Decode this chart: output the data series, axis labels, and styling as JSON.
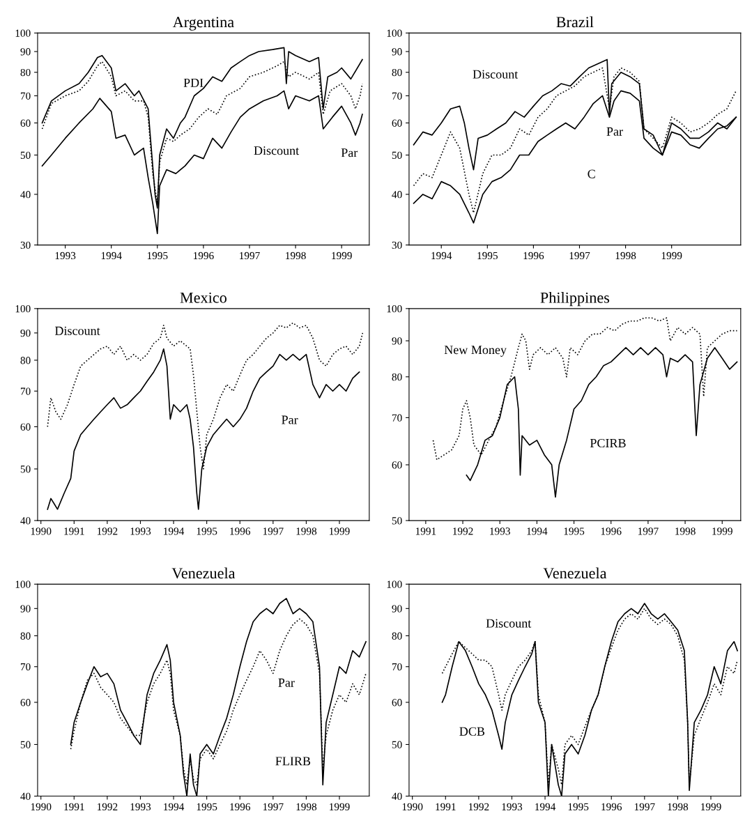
{
  "chart_data": [
    {
      "type": "line",
      "title": "Argentina",
      "log": "y",
      "xlim": [
        1992.4,
        1999.6
      ],
      "ylim": [
        30,
        100
      ],
      "xticks": [
        1993,
        1994,
        1995,
        1996,
        1997,
        1998,
        1999
      ],
      "yticks": [
        30,
        40,
        50,
        60,
        70,
        80,
        90,
        100
      ],
      "annotations": [
        "PDI",
        "Discount",
        "Par"
      ],
      "series": [
        {
          "color": "#000000",
          "line_style": "solid",
          "x": [
            1992.5,
            1992.7,
            1993.0,
            1993.3,
            1993.5,
            1993.7,
            1993.8,
            1994.0,
            1994.1,
            1994.3,
            1994.5,
            1994.6,
            1994.8,
            1994.85,
            1994.95,
            1995.0,
            1995.05,
            1995.2,
            1995.35,
            1995.5,
            1995.6,
            1995.8,
            1996.0,
            1996.2,
            1996.4,
            1996.6,
            1996.8,
            1997.0,
            1997.2,
            1997.5,
            1997.75,
            1997.8,
            1997.85,
            1998.0,
            1998.3,
            1998.5,
            1998.6,
            1998.7,
            1998.9,
            1999.0,
            1999.2,
            1999.45
          ],
          "values": [
            60,
            68,
            72,
            75,
            80,
            87,
            88,
            82,
            72,
            75,
            70,
            72,
            65,
            55,
            40,
            37,
            50,
            58,
            55,
            60,
            62,
            70,
            73,
            78,
            76,
            82,
            85,
            88,
            90,
            91,
            92,
            75,
            90,
            88,
            85,
            87,
            65,
            78,
            80,
            82,
            77,
            86
          ]
        },
        {
          "color": "#000000",
          "line_style": "dotted",
          "x": [
            1992.5,
            1992.7,
            1993.0,
            1993.3,
            1993.5,
            1993.7,
            1993.8,
            1994.0,
            1994.1,
            1994.3,
            1994.5,
            1994.7,
            1994.8,
            1994.9,
            1995.0,
            1995.05,
            1995.2,
            1995.35,
            1995.5,
            1995.7,
            1995.9,
            1996.1,
            1996.3,
            1996.5,
            1996.8,
            1997.0,
            1997.3,
            1997.6,
            1997.75,
            1997.85,
            1998.0,
            1998.3,
            1998.5,
            1998.6,
            1998.75,
            1999.0,
            1999.2,
            1999.3,
            1999.4,
            1999.45
          ],
          "values": [
            58,
            67,
            70,
            72,
            76,
            83,
            85,
            78,
            70,
            72,
            68,
            68,
            62,
            45,
            38,
            48,
            55,
            54,
            56,
            58,
            62,
            65,
            63,
            70,
            73,
            78,
            80,
            83,
            85,
            78,
            80,
            77,
            80,
            63,
            72,
            75,
            70,
            65,
            70,
            75
          ]
        },
        {
          "color": "#000000",
          "line_style": "solid",
          "x": [
            1992.5,
            1992.7,
            1993.0,
            1993.3,
            1993.6,
            1993.75,
            1994.0,
            1994.1,
            1994.3,
            1994.5,
            1994.7,
            1994.8,
            1994.9,
            1995.0,
            1995.05,
            1995.2,
            1995.4,
            1995.6,
            1995.8,
            1996.0,
            1996.2,
            1996.4,
            1996.6,
            1996.8,
            1997.0,
            1997.3,
            1997.6,
            1997.75,
            1997.85,
            1998.0,
            1998.3,
            1998.5,
            1998.6,
            1998.8,
            1999.0,
            1999.2,
            1999.3,
            1999.4,
            1999.45
          ],
          "values": [
            47,
            50,
            55,
            60,
            65,
            69,
            64,
            55,
            56,
            50,
            52,
            44,
            38,
            32,
            42,
            46,
            45,
            47,
            50,
            49,
            55,
            52,
            57,
            62,
            65,
            68,
            70,
            72,
            65,
            70,
            68,
            70,
            58,
            62,
            66,
            60,
            56,
            60,
            63
          ]
        }
      ]
    },
    {
      "type": "line",
      "title": "Brazil",
      "log": "y",
      "xlim": [
        1993.3,
        2000.5
      ],
      "ylim": [
        30,
        100
      ],
      "xticks": [
        1994,
        1995,
        1996,
        1997,
        1998,
        1999
      ],
      "yticks": [
        30,
        40,
        50,
        60,
        70,
        80,
        90,
        100
      ],
      "annotations": [
        "Discount",
        "C",
        "Par"
      ],
      "series": [
        {
          "color": "#000000",
          "line_style": "solid",
          "x": [
            1993.4,
            1993.6,
            1993.8,
            1994.0,
            1994.2,
            1994.4,
            1994.5,
            1994.6,
            1994.7,
            1994.8,
            1995.0,
            1995.2,
            1995.4,
            1995.6,
            1995.8,
            1996.0,
            1996.2,
            1996.4,
            1996.6,
            1996.8,
            1997.0,
            1997.2,
            1997.4,
            1997.6,
            1997.65,
            1997.7,
            1997.9,
            1998.1,
            1998.3,
            1998.4,
            1998.6,
            1998.8,
            1999.0,
            1999.2,
            1999.4,
            1999.6,
            1999.8,
            2000.0,
            2000.2,
            2000.4
          ],
          "values": [
            53,
            57,
            56,
            60,
            65,
            66,
            60,
            52,
            46,
            55,
            56,
            58,
            60,
            64,
            62,
            66,
            70,
            72,
            75,
            74,
            78,
            82,
            84,
            86,
            63,
            75,
            80,
            78,
            75,
            58,
            56,
            50,
            60,
            58,
            55,
            55,
            57,
            60,
            58,
            62
          ]
        },
        {
          "color": "#000000",
          "line_style": "dotted",
          "x": [
            1993.4,
            1993.6,
            1993.8,
            1994.0,
            1994.2,
            1994.4,
            1994.6,
            1994.7,
            1994.9,
            1995.1,
            1995.3,
            1995.5,
            1995.7,
            1995.9,
            1996.1,
            1996.3,
            1996.5,
            1996.7,
            1996.9,
            1997.1,
            1997.3,
            1997.5,
            1997.65,
            1997.75,
            1997.9,
            1998.1,
            1998.3,
            1998.4,
            1998.6,
            1998.8,
            1999.0,
            1999.2,
            1999.4,
            1999.6,
            1999.8,
            2000.0,
            2000.2,
            2000.4
          ],
          "values": [
            42,
            45,
            44,
            50,
            57,
            52,
            40,
            36,
            45,
            50,
            50,
            52,
            58,
            56,
            62,
            65,
            70,
            72,
            74,
            78,
            80,
            82,
            65,
            78,
            82,
            80,
            76,
            58,
            55,
            52,
            62,
            60,
            57,
            58,
            60,
            63,
            65,
            72
          ]
        },
        {
          "color": "#000000",
          "line_style": "solid",
          "x": [
            1993.4,
            1993.6,
            1993.8,
            1994.0,
            1994.2,
            1994.4,
            1994.6,
            1994.7,
            1994.9,
            1995.1,
            1995.3,
            1995.5,
            1995.7,
            1995.9,
            1996.1,
            1996.3,
            1996.5,
            1996.7,
            1996.9,
            1997.1,
            1997.3,
            1997.5,
            1997.65,
            1997.75,
            1997.9,
            1998.1,
            1998.3,
            1998.4,
            1998.6,
            1998.8,
            1999.0,
            1999.2,
            1999.4,
            1999.6,
            1999.8,
            2000.0,
            2000.2,
            2000.4
          ],
          "values": [
            38,
            40,
            39,
            43,
            42,
            40,
            36,
            34,
            40,
            43,
            44,
            46,
            50,
            50,
            54,
            56,
            58,
            60,
            58,
            62,
            67,
            70,
            62,
            68,
            72,
            71,
            68,
            55,
            52,
            50,
            57,
            56,
            53,
            52,
            55,
            58,
            59,
            62
          ]
        }
      ]
    },
    {
      "type": "line",
      "title": "Mexico",
      "log": "y",
      "xlim": [
        1989.9,
        1999.9
      ],
      "ylim": [
        40,
        100
      ],
      "xticks": [
        1990,
        1991,
        1992,
        1993,
        1994,
        1995,
        1996,
        1997,
        1998,
        1999
      ],
      "yticks": [
        40,
        50,
        60,
        70,
        80,
        90,
        100
      ],
      "annotations": [
        "Discount",
        "Par"
      ],
      "series": [
        {
          "color": "#000000",
          "line_style": "dotted",
          "x": [
            1990.2,
            1990.3,
            1990.45,
            1990.6,
            1990.8,
            1991.0,
            1991.2,
            1991.4,
            1991.6,
            1991.8,
            1992.0,
            1992.2,
            1992.4,
            1992.6,
            1992.8,
            1993.0,
            1993.2,
            1993.4,
            1993.6,
            1993.7,
            1993.8,
            1994.0,
            1994.2,
            1994.4,
            1994.5,
            1994.6,
            1994.8,
            1994.9,
            1995.0,
            1995.2,
            1995.4,
            1995.6,
            1995.8,
            1996.0,
            1996.2,
            1996.4,
            1996.6,
            1996.8,
            1997.0,
            1997.2,
            1997.4,
            1997.6,
            1997.8,
            1998.0,
            1998.2,
            1998.4,
            1998.6,
            1998.8,
            1999.0,
            1999.2,
            1999.4,
            1999.6,
            1999.7
          ],
          "values": [
            60,
            68,
            64,
            62,
            66,
            72,
            78,
            80,
            82,
            84,
            85,
            82,
            85,
            80,
            82,
            80,
            82,
            86,
            88,
            93,
            88,
            85,
            87,
            85,
            84,
            75,
            55,
            50,
            58,
            62,
            68,
            72,
            70,
            75,
            80,
            82,
            85,
            88,
            90,
            93,
            92,
            94,
            92,
            93,
            88,
            80,
            78,
            82,
            84,
            85,
            82,
            85,
            90
          ]
        },
        {
          "color": "#000000",
          "line_style": "solid",
          "x": [
            1990.2,
            1990.3,
            1990.4,
            1990.5,
            1990.7,
            1990.9,
            1991.0,
            1991.2,
            1991.4,
            1991.6,
            1991.8,
            1992.0,
            1992.2,
            1992.4,
            1992.6,
            1992.8,
            1993.0,
            1993.2,
            1993.4,
            1993.6,
            1993.7,
            1993.8,
            1993.9,
            1994.0,
            1994.2,
            1994.4,
            1994.5,
            1994.6,
            1994.7,
            1994.75,
            1994.85,
            1995.0,
            1995.2,
            1995.4,
            1995.6,
            1995.8,
            1996.0,
            1996.2,
            1996.4,
            1996.6,
            1996.8,
            1997.0,
            1997.2,
            1997.4,
            1997.6,
            1997.8,
            1998.0,
            1998.2,
            1998.4,
            1998.6,
            1998.8,
            1999.0,
            1999.2,
            1999.4,
            1999.6
          ],
          "values": [
            42,
            44,
            43,
            42,
            45,
            48,
            54,
            58,
            60,
            62,
            64,
            66,
            68,
            65,
            66,
            68,
            70,
            73,
            76,
            80,
            84,
            78,
            62,
            66,
            64,
            66,
            62,
            55,
            45,
            42,
            50,
            55,
            58,
            60,
            62,
            60,
            62,
            65,
            70,
            74,
            76,
            78,
            82,
            80,
            82,
            80,
            82,
            72,
            68,
            72,
            70,
            72,
            70,
            74,
            76
          ]
        }
      ]
    },
    {
      "type": "line",
      "title": "Philippines",
      "log": "y",
      "xlim": [
        1990.55,
        1999.5
      ],
      "ylim": [
        50,
        100
      ],
      "xticks": [
        1991,
        1992,
        1993,
        1994,
        1995,
        1996,
        1997,
        1998,
        1999
      ],
      "yticks": [
        50,
        60,
        70,
        80,
        90,
        100
      ],
      "annotations": [
        "New Money",
        "PCIRB"
      ],
      "series": [
        {
          "color": "#000000",
          "line_style": "dotted",
          "x": [
            1991.2,
            1991.3,
            1991.5,
            1991.7,
            1991.9,
            1992.0,
            1992.1,
            1992.2,
            1992.3,
            1992.5,
            1992.7,
            1992.9,
            1993.1,
            1993.3,
            1993.5,
            1993.6,
            1993.7,
            1993.8,
            1993.9,
            1994.1,
            1994.3,
            1994.5,
            1994.7,
            1994.8,
            1994.9,
            1995.1,
            1995.3,
            1995.5,
            1995.7,
            1995.9,
            1996.1,
            1996.3,
            1996.5,
            1996.7,
            1996.9,
            1997.1,
            1997.3,
            1997.5,
            1997.6,
            1997.8,
            1998.0,
            1998.2,
            1998.4,
            1998.5,
            1998.6,
            1998.8,
            1999.0,
            1999.2,
            1999.4
          ],
          "values": [
            65,
            61,
            62,
            63,
            66,
            72,
            74,
            70,
            64,
            62,
            65,
            68,
            74,
            80,
            88,
            92,
            90,
            82,
            86,
            88,
            86,
            88,
            85,
            80,
            88,
            86,
            90,
            92,
            92,
            94,
            93,
            95,
            96,
            96,
            97,
            97,
            96,
            97,
            90,
            94,
            92,
            94,
            92,
            75,
            88,
            90,
            92,
            93,
            93
          ]
        },
        {
          "color": "#000000",
          "line_style": "solid",
          "x": [
            1992.1,
            1992.2,
            1992.4,
            1992.6,
            1992.8,
            1993.0,
            1993.2,
            1993.4,
            1993.5,
            1993.55,
            1993.6,
            1993.8,
            1994.0,
            1994.2,
            1994.4,
            1994.5,
            1994.6,
            1994.8,
            1995.0,
            1995.2,
            1995.4,
            1995.6,
            1995.8,
            1996.0,
            1996.2,
            1996.4,
            1996.6,
            1996.8,
            1997.0,
            1997.2,
            1997.4,
            1997.5,
            1997.6,
            1997.8,
            1998.0,
            1998.2,
            1998.3,
            1998.4,
            1998.6,
            1998.8,
            1999.0,
            1999.2,
            1999.4
          ],
          "values": [
            58,
            57,
            60,
            65,
            66,
            70,
            78,
            80,
            72,
            58,
            66,
            64,
            65,
            62,
            60,
            54,
            60,
            65,
            72,
            74,
            78,
            80,
            83,
            84,
            86,
            88,
            86,
            88,
            86,
            88,
            86,
            80,
            85,
            84,
            86,
            84,
            66,
            78,
            85,
            88,
            85,
            82,
            84
          ]
        }
      ]
    },
    {
      "type": "line",
      "title": "Venezuela",
      "log": "y",
      "xlim": [
        1989.9,
        1999.9
      ],
      "ylim": [
        40,
        100
      ],
      "xticks": [
        1990,
        1991,
        1992,
        1993,
        1994,
        1995,
        1996,
        1997,
        1998,
        1999
      ],
      "yticks": [
        40,
        50,
        60,
        70,
        80,
        90,
        100
      ],
      "annotations": [
        "Par",
        "FLIRB"
      ],
      "series": [
        {
          "color": "#000000",
          "line_style": "solid",
          "x": [
            1990.9,
            1991.0,
            1991.2,
            1991.4,
            1991.6,
            1991.8,
            1992.0,
            1992.2,
            1992.4,
            1992.6,
            1992.8,
            1993.0,
            1993.2,
            1993.4,
            1993.6,
            1993.8,
            1993.9,
            1994.0,
            1994.2,
            1994.3,
            1994.4,
            1994.5,
            1994.6,
            1994.7,
            1994.8,
            1995.0,
            1995.2,
            1995.4,
            1995.6,
            1995.8,
            1996.0,
            1996.2,
            1996.4,
            1996.6,
            1996.8,
            1997.0,
            1997.2,
            1997.4,
            1997.6,
            1997.8,
            1998.0,
            1998.2,
            1998.4,
            1998.5,
            1998.6,
            1998.8,
            1999.0,
            1999.2,
            1999.4,
            1999.6,
            1999.8
          ],
          "values": [
            50,
            55,
            60,
            65,
            70,
            67,
            68,
            65,
            58,
            55,
            52,
            50,
            62,
            68,
            72,
            77,
            72,
            60,
            52,
            44,
            40,
            48,
            42,
            40,
            48,
            50,
            48,
            52,
            56,
            62,
            70,
            78,
            85,
            88,
            90,
            88,
            92,
            94,
            88,
            90,
            88,
            85,
            70,
            42,
            55,
            62,
            70,
            68,
            75,
            73,
            78
          ]
        },
        {
          "color": "#000000",
          "line_style": "dotted",
          "x": [
            1990.9,
            1991.0,
            1991.2,
            1991.4,
            1991.6,
            1991.8,
            1992.0,
            1992.2,
            1992.4,
            1992.6,
            1992.8,
            1993.0,
            1993.2,
            1993.4,
            1993.6,
            1993.8,
            1993.9,
            1994.0,
            1994.2,
            1994.3,
            1994.4,
            1994.5,
            1994.6,
            1994.7,
            1994.8,
            1995.0,
            1995.2,
            1995.4,
            1995.6,
            1995.8,
            1996.0,
            1996.2,
            1996.4,
            1996.6,
            1996.8,
            1997.0,
            1997.2,
            1997.4,
            1997.6,
            1997.8,
            1998.0,
            1998.2,
            1998.4,
            1998.5,
            1998.6,
            1998.8,
            1999.0,
            1999.2,
            1999.4,
            1999.6,
            1999.8
          ],
          "values": [
            49,
            53,
            60,
            66,
            68,
            64,
            62,
            60,
            56,
            54,
            52,
            52,
            60,
            65,
            68,
            72,
            68,
            58,
            52,
            45,
            42,
            47,
            43,
            42,
            47,
            49,
            47,
            50,
            53,
            58,
            62,
            66,
            70,
            75,
            72,
            68,
            75,
            80,
            84,
            86,
            84,
            80,
            68,
            45,
            52,
            58,
            62,
            60,
            65,
            62,
            68
          ]
        }
      ]
    },
    {
      "type": "line",
      "title": "Venezuela",
      "log": "y",
      "xlim": [
        1989.9,
        1999.9
      ],
      "ylim": [
        40,
        100
      ],
      "xticks": [
        1990,
        1991,
        1992,
        1993,
        1994,
        1995,
        1996,
        1997,
        1998,
        1999
      ],
      "yticks": [
        40,
        50,
        60,
        70,
        80,
        90,
        100
      ],
      "annotations": [
        "Discount",
        "DCB"
      ],
      "series": [
        {
          "color": "#000000",
          "line_style": "solid",
          "x": [
            1990.9,
            1991.0,
            1991.2,
            1991.4,
            1991.6,
            1991.8,
            1992.0,
            1992.2,
            1992.4,
            1992.6,
            1992.7,
            1992.8,
            1993.0,
            1993.2,
            1993.4,
            1993.6,
            1993.7,
            1993.8,
            1994.0,
            1994.1,
            1994.2,
            1994.4,
            1994.5,
            1994.6,
            1994.8,
            1995.0,
            1995.2,
            1995.4,
            1995.6,
            1995.8,
            1996.0,
            1996.2,
            1996.4,
            1996.6,
            1996.8,
            1997.0,
            1997.2,
            1997.4,
            1997.6,
            1997.8,
            1998.0,
            1998.2,
            1998.3,
            1998.35,
            1998.5,
            1998.7,
            1998.9,
            1999.1,
            1999.3,
            1999.5,
            1999.7,
            1999.8
          ],
          "values": [
            60,
            62,
            70,
            78,
            75,
            70,
            65,
            62,
            58,
            52,
            49,
            55,
            62,
            66,
            70,
            74,
            78,
            60,
            55,
            40,
            50,
            42,
            40,
            48,
            50,
            48,
            52,
            58,
            62,
            70,
            78,
            85,
            88,
            90,
            88,
            92,
            88,
            86,
            88,
            85,
            82,
            75,
            55,
            41,
            55,
            58,
            62,
            70,
            65,
            75,
            78,
            75
          ]
        },
        {
          "color": "#000000",
          "line_style": "dotted",
          "x": [
            1990.9,
            1991.0,
            1991.2,
            1991.4,
            1991.6,
            1991.8,
            1992.0,
            1992.2,
            1992.4,
            1992.6,
            1992.7,
            1992.8,
            1993.0,
            1993.2,
            1993.4,
            1993.6,
            1993.7,
            1993.8,
            1994.0,
            1994.1,
            1994.2,
            1994.4,
            1994.5,
            1994.6,
            1994.8,
            1995.0,
            1995.2,
            1995.4,
            1995.6,
            1995.8,
            1996.0,
            1996.2,
            1996.4,
            1996.6,
            1996.8,
            1997.0,
            1997.2,
            1997.4,
            1997.6,
            1997.8,
            1998.0,
            1998.2,
            1998.3,
            1998.35,
            1998.5,
            1998.7,
            1998.9,
            1999.1,
            1999.3,
            1999.5,
            1999.7,
            1999.8
          ],
          "values": [
            68,
            70,
            74,
            78,
            76,
            74,
            72,
            72,
            70,
            62,
            58,
            62,
            66,
            70,
            72,
            75,
            78,
            62,
            55,
            42,
            50,
            45,
            42,
            50,
            52,
            50,
            54,
            58,
            62,
            70,
            76,
            82,
            86,
            88,
            86,
            90,
            86,
            84,
            86,
            84,
            80,
            72,
            55,
            42,
            52,
            56,
            60,
            65,
            62,
            70,
            68,
            72
          ]
        }
      ]
    }
  ]
}
